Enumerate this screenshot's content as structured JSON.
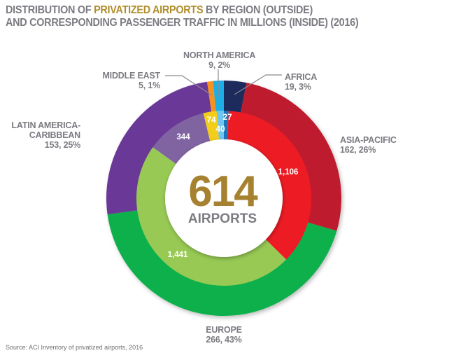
{
  "title": {
    "line1_prefix": "DISTRIBUTION OF ",
    "line1_highlight": "PRIVATIZED AIRPORTS",
    "line1_suffix": " BY REGION (OUTSIDE)",
    "line2": "AND CORRESPONDING PASSENGER TRAFFIC IN MILLIONS (INSIDE) (2016)",
    "highlight_color": "#b08d2b"
  },
  "center": {
    "value": "614",
    "label": "AIRPORTS",
    "value_color": "#a68230"
  },
  "source": "Source: ACI Inventory of privatized airports, 2016",
  "chart_data": {
    "type": "pie",
    "subtype": "nested-donut",
    "title": "DISTRIBUTION OF PRIVATIZED AIRPORTS BY REGION (OUTSIDE) AND CORRESPONDING PASSENGER TRAFFIC IN MILLIONS (INSIDE) (2016)",
    "direction": "clockwise-from-top",
    "categories": [
      "Africa",
      "Asia-Pacific",
      "Europe",
      "Latin America-Caribbean",
      "Middle East",
      "North America"
    ],
    "series": [
      {
        "name": "Privatized airports (outer ring)",
        "values": [
          19,
          162,
          266,
          153,
          5,
          9
        ],
        "percent": [
          3,
          26,
          43,
          25,
          1,
          2
        ],
        "colors": [
          "#1f2a5c",
          "#be1e2d",
          "#0db04b",
          "#6b3896",
          "#f7931e",
          "#1aaee5"
        ],
        "labels": [
          {
            "name": "AFRICA",
            "value": "19, 3%"
          },
          {
            "name": "ASIA-PACIFIC",
            "value": "162, 26%"
          },
          {
            "name": "EUROPE",
            "value": "266, 43%"
          },
          {
            "name": "LATIN AMERICA-\nCARIBBEAN",
            "name_line1": "LATIN AMERICA-",
            "name_line2": "CARIBBEAN",
            "value": "153, 25%"
          },
          {
            "name": "MIDDLE EAST",
            "value": "5, 1%"
          },
          {
            "name": "NORTH AMERICA",
            "value": "9, 2%"
          }
        ]
      },
      {
        "name": "Passenger traffic in millions (inner ring)",
        "values": [
          27,
          1106,
          1441,
          344,
          74,
          40
        ],
        "data_labels": [
          "27",
          "1,106",
          "1,441",
          "344",
          "74",
          "40"
        ],
        "colors": [
          "#1b75bb",
          "#ed1c24",
          "#97c954",
          "#8064a2",
          "#f2cd1a",
          "#6ec6f0"
        ]
      }
    ],
    "total_center": 614,
    "center_label": "AIRPORTS"
  }
}
